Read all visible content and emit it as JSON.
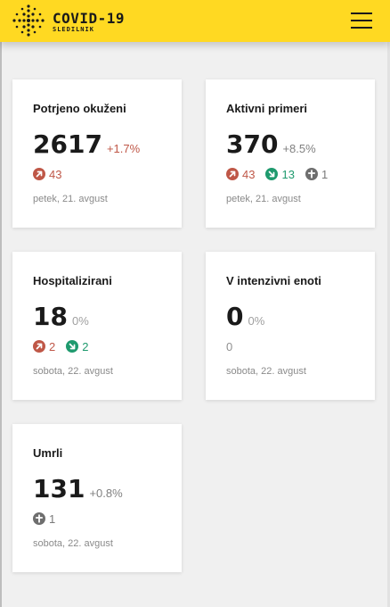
{
  "header": {
    "title": "COVID-19",
    "subtitle": "SLEDILNIK"
  },
  "colors": {
    "header_bg": "#ffd922",
    "up": "#bf5747",
    "down": "#1f9a6e",
    "neutral": "#7a7a7a"
  },
  "cards": [
    {
      "title": "Potrjeno okuženi",
      "value": "2617",
      "pct": "+1.7%",
      "up": "43",
      "date": "petek, 21. avgust"
    },
    {
      "title": "Aktivni primeri",
      "value": "370",
      "pct": "+8.5%",
      "up": "43",
      "down": "13",
      "deaths": "1",
      "date": "petek, 21. avgust"
    },
    {
      "title": "Hospitalizirani",
      "value": "18",
      "pct": "0%",
      "up": "2",
      "down": "2",
      "date": "sobota, 22. avgust"
    },
    {
      "title": "V intenzivni enoti",
      "value": "0",
      "pct": "0%",
      "plain": "0",
      "date": "sobota, 22. avgust"
    },
    {
      "title": "Umrli",
      "value": "131",
      "pct": "+0.8%",
      "deaths": "1",
      "date": "sobota, 22. avgust"
    }
  ]
}
